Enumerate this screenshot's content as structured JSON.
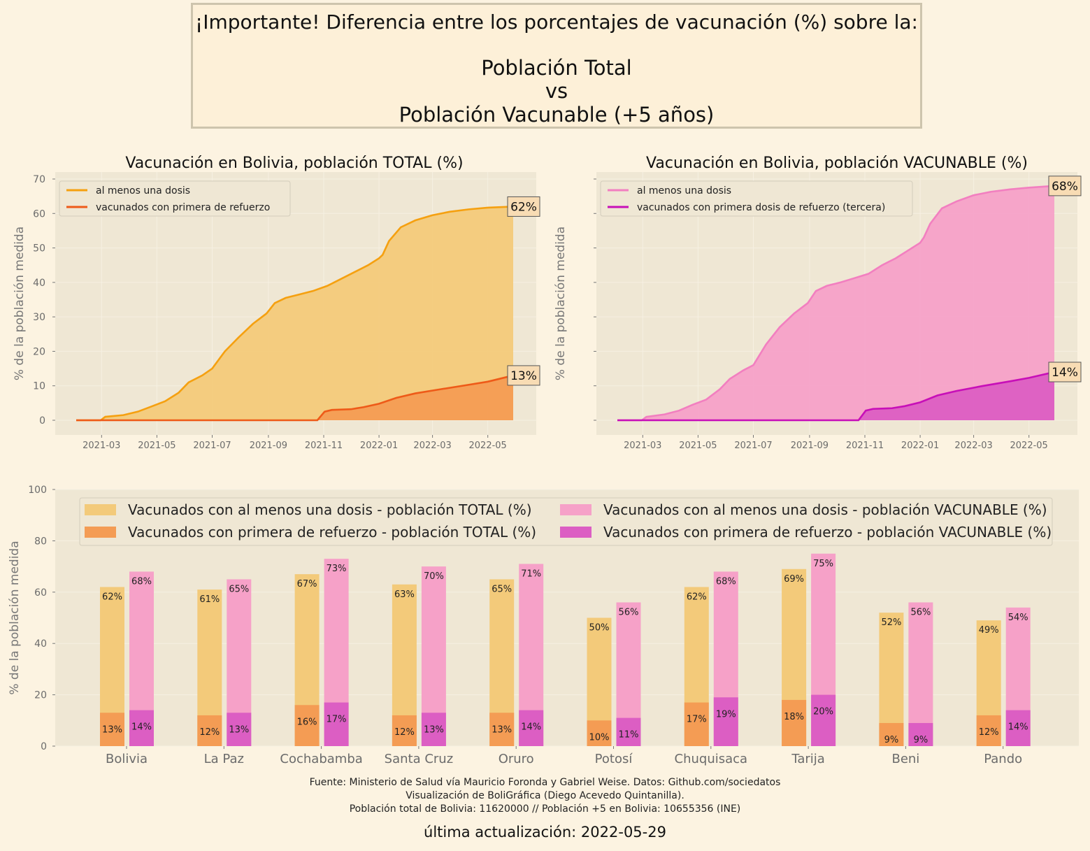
{
  "header": {
    "line1": "¡Importante! Diferencia entre los porcentajes de vacunación (%) sobre la:",
    "line2": "Población Total",
    "line3": "vs",
    "line4": "Población Vacunable (+5 años)"
  },
  "colors": {
    "background": "#fcf3e1",
    "plot_bg": "#efe7d4",
    "total_dose": "#f3ca7a",
    "total_dose_line": "#f5a010",
    "total_booster": "#f49c54",
    "total_booster_line": "#ee5a18",
    "vac_dose": "#f6a1c8",
    "vac_dose_line": "#f27fc0",
    "vac_booster": "#dc5ec3",
    "vac_booster_line": "#c70fb8",
    "label_box": "#f8dcb4"
  },
  "chart_data": [
    {
      "type": "area",
      "title": "Vacunación en Bolivia, población TOTAL (%)",
      "ylabel": "% de la población medida",
      "xlabel": "",
      "ylim": [
        0,
        70
      ],
      "yticks": [
        0,
        10,
        20,
        30,
        40,
        50,
        60,
        70
      ],
      "xticks": [
        "2021-03",
        "2021-05",
        "2021-07",
        "2021-09",
        "2021-11",
        "2022-01",
        "2022-03",
        "2022-05"
      ],
      "legend_position": "top-left",
      "grid": true,
      "series": [
        {
          "name": "al menos una dosis",
          "end_label": "62%",
          "points": [
            [
              "2021-02-01",
              0
            ],
            [
              "2021-02-28",
              0
            ],
            [
              "2021-03-05",
              1
            ],
            [
              "2021-03-25",
              1.5
            ],
            [
              "2021-04-10",
              2.5
            ],
            [
              "2021-04-25",
              4
            ],
            [
              "2021-05-10",
              5.5
            ],
            [
              "2021-05-25",
              8
            ],
            [
              "2021-06-05",
              11
            ],
            [
              "2021-06-20",
              13
            ],
            [
              "2021-07-01",
              15
            ],
            [
              "2021-07-15",
              20
            ],
            [
              "2021-07-30",
              24
            ],
            [
              "2021-08-15",
              28
            ],
            [
              "2021-08-30",
              31
            ],
            [
              "2021-09-08",
              34
            ],
            [
              "2021-09-20",
              35.5
            ],
            [
              "2021-10-05",
              36.5
            ],
            [
              "2021-10-20",
              37.5
            ],
            [
              "2021-11-05",
              39
            ],
            [
              "2021-11-20",
              41
            ],
            [
              "2021-12-05",
              43
            ],
            [
              "2021-12-20",
              45
            ],
            [
              "2022-01-01",
              47
            ],
            [
              "2022-01-05",
              48
            ],
            [
              "2022-01-12",
              52
            ],
            [
              "2022-01-25",
              56
            ],
            [
              "2022-02-10",
              58
            ],
            [
              "2022-03-01",
              59.5
            ],
            [
              "2022-03-20",
              60.5
            ],
            [
              "2022-04-10",
              61.2
            ],
            [
              "2022-05-01",
              61.7
            ],
            [
              "2022-05-29",
              62
            ]
          ]
        },
        {
          "name": "vacunados con primera de refuerzo",
          "end_label": "13%",
          "points": [
            [
              "2021-02-01",
              0
            ],
            [
              "2021-10-25",
              0
            ],
            [
              "2021-11-02",
              2.5
            ],
            [
              "2021-11-10",
              3
            ],
            [
              "2021-12-01",
              3.2
            ],
            [
              "2021-12-15",
              3.8
            ],
            [
              "2022-01-01",
              4.8
            ],
            [
              "2022-01-20",
              6.5
            ],
            [
              "2022-02-10",
              7.8
            ],
            [
              "2022-03-10",
              9
            ],
            [
              "2022-04-10",
              10.3
            ],
            [
              "2022-05-01",
              11.2
            ],
            [
              "2022-05-29",
              13
            ]
          ]
        }
      ]
    },
    {
      "type": "area",
      "title": "Vacunación en Bolivia, población VACUNABLE (%)",
      "ylabel": "% de la población medida",
      "xlabel": "",
      "ylim": [
        0,
        70
      ],
      "xticks": [
        "2021-03",
        "2021-05",
        "2021-07",
        "2021-09",
        "2021-11",
        "2022-01",
        "2022-03",
        "2022-05"
      ],
      "legend_position": "top-left",
      "grid": true,
      "series": [
        {
          "name": "al menos una dosis",
          "end_label": "68%",
          "points": [
            [
              "2021-02-01",
              0
            ],
            [
              "2021-02-28",
              0
            ],
            [
              "2021-03-05",
              1
            ],
            [
              "2021-03-25",
              1.7
            ],
            [
              "2021-04-10",
              2.8
            ],
            [
              "2021-04-25",
              4.5
            ],
            [
              "2021-05-10",
              6
            ],
            [
              "2021-05-25",
              9
            ],
            [
              "2021-06-05",
              12
            ],
            [
              "2021-06-20",
              14.5
            ],
            [
              "2021-07-01",
              16
            ],
            [
              "2021-07-15",
              22
            ],
            [
              "2021-07-30",
              27
            ],
            [
              "2021-08-15",
              31
            ],
            [
              "2021-08-30",
              34
            ],
            [
              "2021-09-08",
              37.5
            ],
            [
              "2021-09-20",
              39
            ],
            [
              "2021-10-05",
              40
            ],
            [
              "2021-10-20",
              41.2
            ],
            [
              "2021-11-05",
              42.5
            ],
            [
              "2021-11-20",
              45
            ],
            [
              "2021-12-05",
              47
            ],
            [
              "2021-12-20",
              49.5
            ],
            [
              "2022-01-01",
              51.5
            ],
            [
              "2022-01-05",
              53
            ],
            [
              "2022-01-12",
              57
            ],
            [
              "2022-01-25",
              61.5
            ],
            [
              "2022-02-10",
              63.5
            ],
            [
              "2022-03-01",
              65.3
            ],
            [
              "2022-03-20",
              66.3
            ],
            [
              "2022-04-10",
              67
            ],
            [
              "2022-05-01",
              67.5
            ],
            [
              "2022-05-29",
              68
            ]
          ]
        },
        {
          "name": "vacunados con primera dosis de refuerzo (tercera)",
          "end_label": "14%",
          "points": [
            [
              "2021-02-01",
              0
            ],
            [
              "2021-10-25",
              0
            ],
            [
              "2021-11-02",
              2.8
            ],
            [
              "2021-11-10",
              3.3
            ],
            [
              "2021-12-01",
              3.5
            ],
            [
              "2021-12-15",
              4.1
            ],
            [
              "2022-01-01",
              5.2
            ],
            [
              "2022-01-20",
              7.2
            ],
            [
              "2022-02-10",
              8.5
            ],
            [
              "2022-03-10",
              9.9
            ],
            [
              "2022-04-10",
              11.3
            ],
            [
              "2022-05-01",
              12.3
            ],
            [
              "2022-05-29",
              14
            ]
          ]
        }
      ]
    },
    {
      "type": "bar",
      "ylabel": "% de la población medida",
      "xlabel": "",
      "ylim": [
        0,
        100
      ],
      "yticks": [
        0,
        20,
        40,
        60,
        80,
        100
      ],
      "legend_position": "top",
      "categories": [
        "Bolivia",
        "La Paz",
        "Cochabamba",
        "Santa Cruz",
        "Oruro",
        "Potosí",
        "Chuquisaca",
        "Tarija",
        "Beni",
        "Pando"
      ],
      "series": [
        {
          "name": "Vacunados con al menos una dosis - población TOTAL (%)",
          "values": [
            62,
            61,
            67,
            63,
            65,
            50,
            62,
            69,
            52,
            49
          ]
        },
        {
          "name": "Vacunados con primera de refuerzo - población TOTAL (%)",
          "values": [
            13,
            12,
            16,
            12,
            13,
            10,
            17,
            18,
            9,
            12
          ]
        },
        {
          "name": "Vacunados con al menos una dosis - población VACUNABLE (%)",
          "values": [
            68,
            65,
            73,
            70,
            71,
            56,
            68,
            75,
            56,
            54
          ]
        },
        {
          "name": "Vacunados con primera de refuerzo - población VACUNABLE (%)",
          "values": [
            14,
            13,
            17,
            13,
            14,
            11,
            19,
            20,
            9,
            14
          ]
        }
      ]
    }
  ],
  "footer": {
    "line1": "Fuente: Ministerio de Salud vía Mauricio Foronda y Gabriel Weise. Datos: Github.com/sociedatos",
    "line2": "Visualización de BoliGráfica (Diego Acevedo Quintanilla).",
    "line3": "Población total de Bolivia: 11620000 // Población +5 en Bolivia: 10655356 (INE)",
    "updated": "última actualización: 2022-05-29"
  }
}
